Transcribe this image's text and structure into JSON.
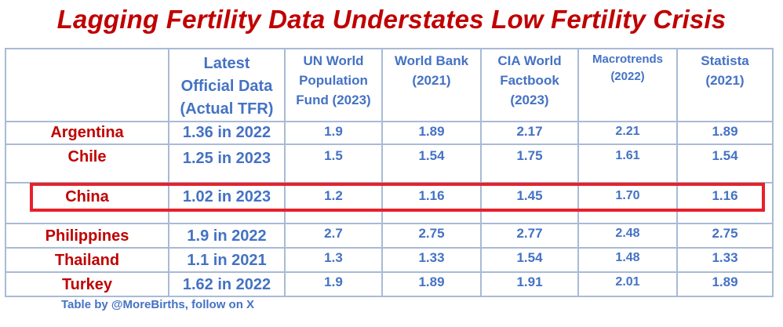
{
  "title": "Lagging Fertility Data Understates Low Fertility Crisis",
  "headers": {
    "corner": "",
    "official": "Latest\nOfficial Data\n(Actual TFR)",
    "unfpa": "UN World\nPopulation\nFund (2023)",
    "worldbank": "World Bank\n(2021)",
    "cia": "CIA World\nFactbook\n(2023)",
    "macrotrends": "Macrotrends\n(2022)",
    "statista": "Statista\n(2021)"
  },
  "rows": [
    {
      "country": "Argentina",
      "official": "1.36 in 2022",
      "unfpa": "1.9",
      "worldbank": "1.89",
      "cia": "2.17",
      "macrotrends": "2.21",
      "statista": "1.89"
    },
    {
      "country": "Chile",
      "official": "1.25 in 2023",
      "unfpa": "1.5",
      "worldbank": "1.54",
      "cia": "1.75",
      "macrotrends": "1.61",
      "statista": "1.54"
    },
    {
      "country": "China",
      "official": "1.02 in 2023",
      "unfpa": "1.2",
      "worldbank": "1.16",
      "cia": "1.45",
      "macrotrends": "1.70",
      "statista": "1.16"
    },
    {
      "country": "Philippines",
      "official": "1.9 in 2022",
      "unfpa": "2.7",
      "worldbank": "2.75",
      "cia": "2.77",
      "macrotrends": "2.48",
      "statista": "2.75"
    },
    {
      "country": "Thailand",
      "official": "1.1 in 2021",
      "unfpa": "1.3",
      "worldbank": "1.33",
      "cia": "1.54",
      "macrotrends": "1.48",
      "statista": "1.33"
    },
    {
      "country": "Turkey",
      "official": "1.62 in 2022",
      "unfpa": "1.9",
      "worldbank": "1.89",
      "cia": "1.91",
      "macrotrends": "2.01",
      "statista": "1.89"
    }
  ],
  "highlighted_country": "China",
  "credit": "Table by @MoreBirths, follow on X",
  "colors": {
    "title": "#c00000",
    "country": "#c00000",
    "values": "#4472c4",
    "grid": "#a9bad6",
    "highlight": "#e8202a"
  }
}
